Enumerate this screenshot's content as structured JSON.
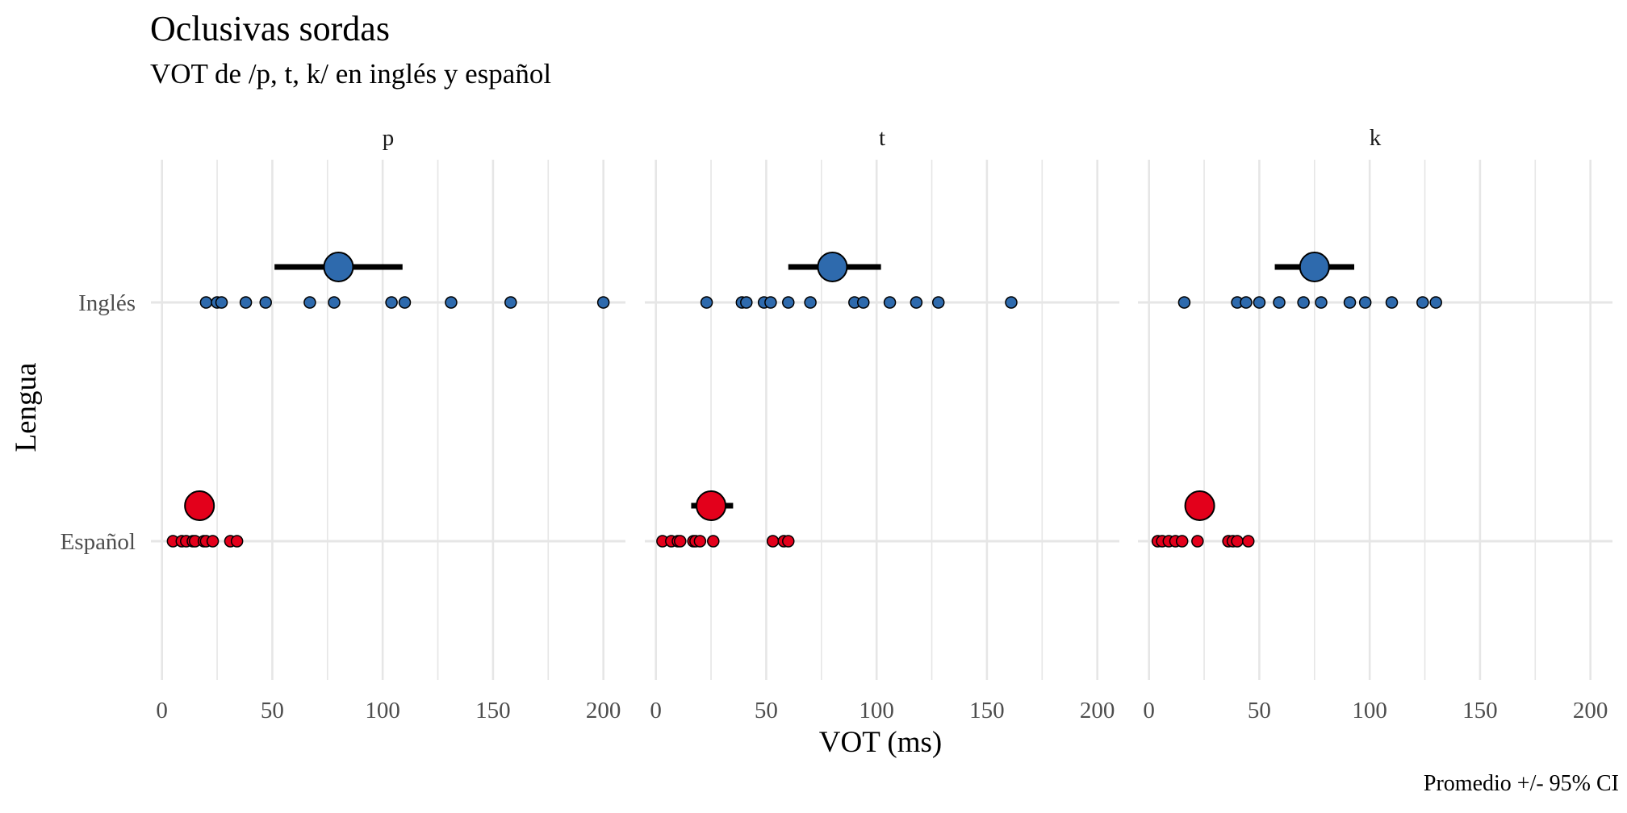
{
  "chart_data": {
    "type": "scatter",
    "title": "Oclusivas sordas",
    "subtitle": "VOT de /p, t, k/ en inglés y español",
    "xlabel": "VOT (ms)",
    "ylabel": "Lengua",
    "caption": "Promedio +/- 95% CI",
    "xlim": [
      -5,
      210
    ],
    "xticks": [
      0,
      50,
      100,
      150,
      200
    ],
    "categories": [
      "Inglés",
      "Español"
    ],
    "grid": true,
    "colors": {
      "Inglés": "#2e6aad",
      "Español": "#e3001b",
      "ci": "#000000"
    },
    "facets": [
      {
        "label": "p",
        "series": [
          {
            "name": "Inglés",
            "points": [
              20,
              25,
              27,
              38,
              47,
              67,
              78,
              104,
              110,
              131,
              158,
              200
            ],
            "mean": 80,
            "ci": [
              51,
              109
            ]
          },
          {
            "name": "Español",
            "points": [
              5,
              9,
              11,
              14,
              15,
              19,
              20,
              23,
              31,
              34
            ],
            "mean": 17,
            "ci": [
              14,
              20
            ]
          }
        ]
      },
      {
        "label": "t",
        "series": [
          {
            "name": "Inglés",
            "points": [
              23,
              39,
              41,
              49,
              52,
              60,
              70,
              90,
              94,
              106,
              118,
              128,
              161
            ],
            "mean": 80,
            "ci": [
              60,
              102
            ]
          },
          {
            "name": "Español",
            "points": [
              3,
              7,
              10,
              11,
              17,
              18,
              20,
              26,
              53,
              58,
              60
            ],
            "mean": 25,
            "ci": [
              16,
              35
            ]
          }
        ]
      },
      {
        "label": "k",
        "series": [
          {
            "name": "Inglés",
            "points": [
              16,
              40,
              44,
              50,
              59,
              70,
              78,
              91,
              98,
              110,
              124,
              130
            ],
            "mean": 75,
            "ci": [
              57,
              93
            ]
          },
          {
            "name": "Español",
            "points": [
              4,
              6,
              9,
              12,
              15,
              22,
              36,
              38,
              40,
              45
            ],
            "mean": 23,
            "ci": [
              17,
              29
            ]
          }
        ]
      }
    ]
  }
}
